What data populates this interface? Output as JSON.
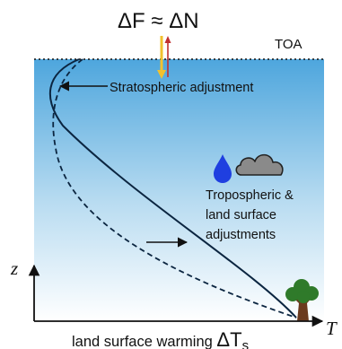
{
  "header": {
    "flux_equation": "ΔF ≈ ΔN",
    "toa_label": "TOA"
  },
  "annotations": {
    "stratospheric": "Stratospheric adjustment",
    "tropospheric_line1": "Tropospheric &",
    "tropospheric_line2": "land surface",
    "tropospheric_line3": "adjustments"
  },
  "axes": {
    "y_label": "z",
    "x_label": "T",
    "x_caption_text": "land surface warming ",
    "x_caption_symbol": "ΔT",
    "x_caption_subscript": "s"
  },
  "colors": {
    "sky_top": "#4ea6dd",
    "sky_bottom": "#ffffff",
    "profile_line": "#0b2540",
    "incoming_arrow": "#f2c12e",
    "outgoing_arrow": "#c03030",
    "water_drop": "#1f3fe0",
    "cloud": "#8a8a8a",
    "tree_foliage": "#2f7a2a",
    "tree_trunk": "#6b3a1e"
  },
  "icons": {
    "drop": "water-drop-icon",
    "cloud": "cloud-icon",
    "tree": "tree-icon"
  }
}
